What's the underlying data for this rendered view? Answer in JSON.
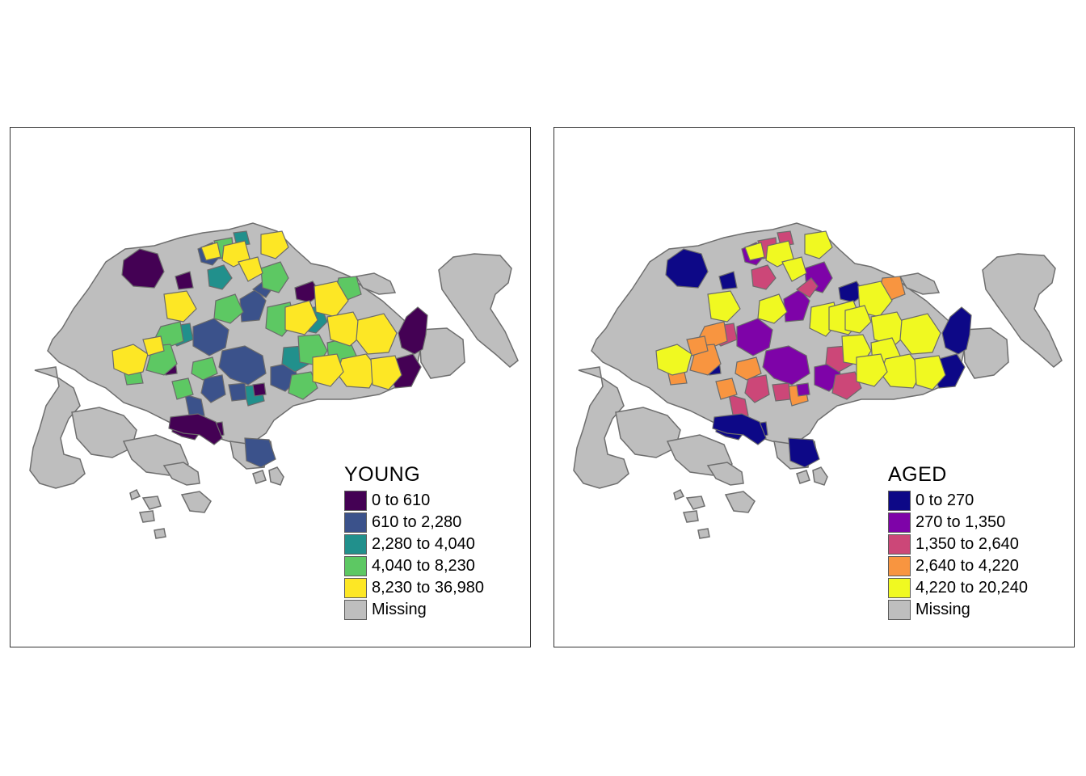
{
  "maps": [
    {
      "id": "young",
      "legend": {
        "title": "YOUNG",
        "items": [
          {
            "label": "0 to 610",
            "color": "#440154"
          },
          {
            "label": "610 to 2,280",
            "color": "#3B528B"
          },
          {
            "label": "2,280 to 4,040",
            "color": "#21908C"
          },
          {
            "label": "4,040 to 8,230",
            "color": "#5DC863"
          },
          {
            "label": "8,230 to 36,980",
            "color": "#FDE725"
          },
          {
            "label": "Missing",
            "color": "#BEBEBE"
          }
        ]
      }
    },
    {
      "id": "aged",
      "legend": {
        "title": "AGED",
        "items": [
          {
            "label": "0 to 270",
            "color": "#0D0887"
          },
          {
            "label": "270 to 1,350",
            "color": "#7E03A8"
          },
          {
            "label": "1,350 to 2,640",
            "color": "#CC4778"
          },
          {
            "label": "2,640 to 4,220",
            "color": "#F89540"
          },
          {
            "label": "4,220 to 20,240",
            "color": "#F0F921"
          },
          {
            "label": "Missing",
            "color": "#BEBEBE"
          }
        ]
      }
    }
  ]
}
